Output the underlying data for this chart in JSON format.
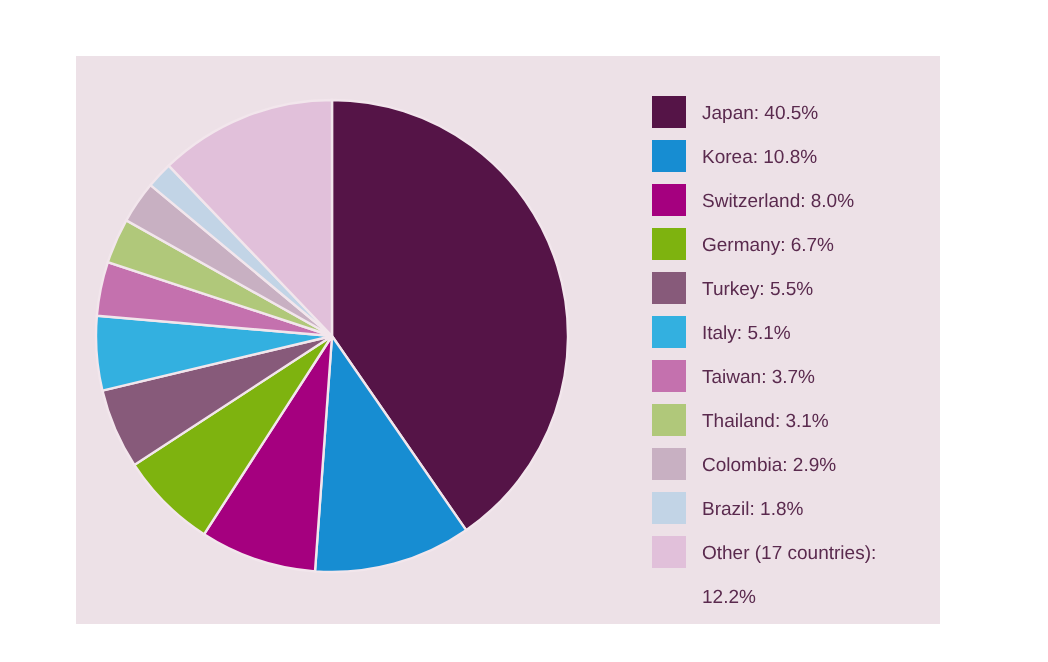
{
  "chart_data": {
    "type": "pie",
    "categories": [
      "Japan: 40.5%",
      "Korea: 10.8%",
      "Switzerland: 8.0%",
      "Germany: 6.7%",
      "Turkey: 5.5%",
      "Italy: 5.1%",
      "Taiwan: 3.7%",
      "Thailand: 3.1%",
      "Colombia: 2.9%",
      "Brazil: 1.8%",
      "Other (17 countries): 12.2%"
    ],
    "values": [
      40.5,
      10.8,
      8.0,
      6.7,
      5.5,
      5.1,
      3.7,
      3.1,
      2.9,
      1.8,
      12.2
    ],
    "colors": [
      "#551447",
      "#178dd2",
      "#a5007f",
      "#7eb30f",
      "#875a7a",
      "#33b0e0",
      "#c471ae",
      "#b0c87a",
      "#c8b0c2",
      "#c2d4e6",
      "#e1c0da"
    ],
    "legend": "right"
  }
}
